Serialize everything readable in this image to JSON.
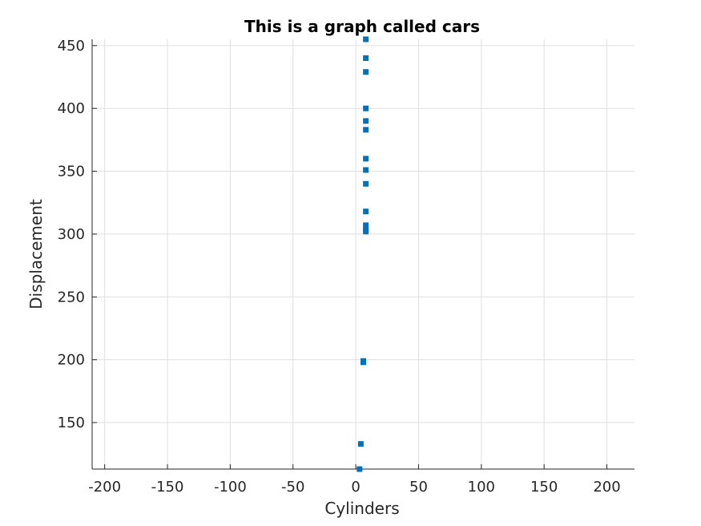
{
  "chart_data": {
    "type": "scatter",
    "title": "This is a graph called cars",
    "xlabel": "Cylinders",
    "ylabel": "Displacement",
    "xlim": [
      -210,
      222
    ],
    "ylim": [
      113,
      455
    ],
    "xticks": [
      -200,
      -150,
      -100,
      -50,
      0,
      50,
      100,
      150,
      200
    ],
    "yticks": [
      150,
      200,
      250,
      300,
      350,
      400,
      450
    ],
    "xtick_labels": [
      "-200",
      "-150",
      "-100",
      "-50",
      "0",
      "50",
      "100",
      "150",
      "200"
    ],
    "ytick_labels": [
      "150",
      "200",
      "250",
      "300",
      "350",
      "400",
      "450"
    ],
    "grid": true,
    "marker": "square",
    "marker_color": "#0072BD",
    "series": [
      {
        "points": [
          {
            "x": 8,
            "y": 455
          },
          {
            "x": 8,
            "y": 440
          },
          {
            "x": 8,
            "y": 429
          },
          {
            "x": 8,
            "y": 400
          },
          {
            "x": 8,
            "y": 390
          },
          {
            "x": 8,
            "y": 383
          },
          {
            "x": 8,
            "y": 360
          },
          {
            "x": 8,
            "y": 351
          },
          {
            "x": 8,
            "y": 340
          },
          {
            "x": 8,
            "y": 318
          },
          {
            "x": 8,
            "y": 307
          },
          {
            "x": 8,
            "y": 304
          },
          {
            "x": 8,
            "y": 302
          },
          {
            "x": 6,
            "y": 199
          },
          {
            "x": 6,
            "y": 198
          },
          {
            "x": 4,
            "y": 133
          },
          {
            "x": 3,
            "y": 113
          }
        ]
      }
    ]
  }
}
